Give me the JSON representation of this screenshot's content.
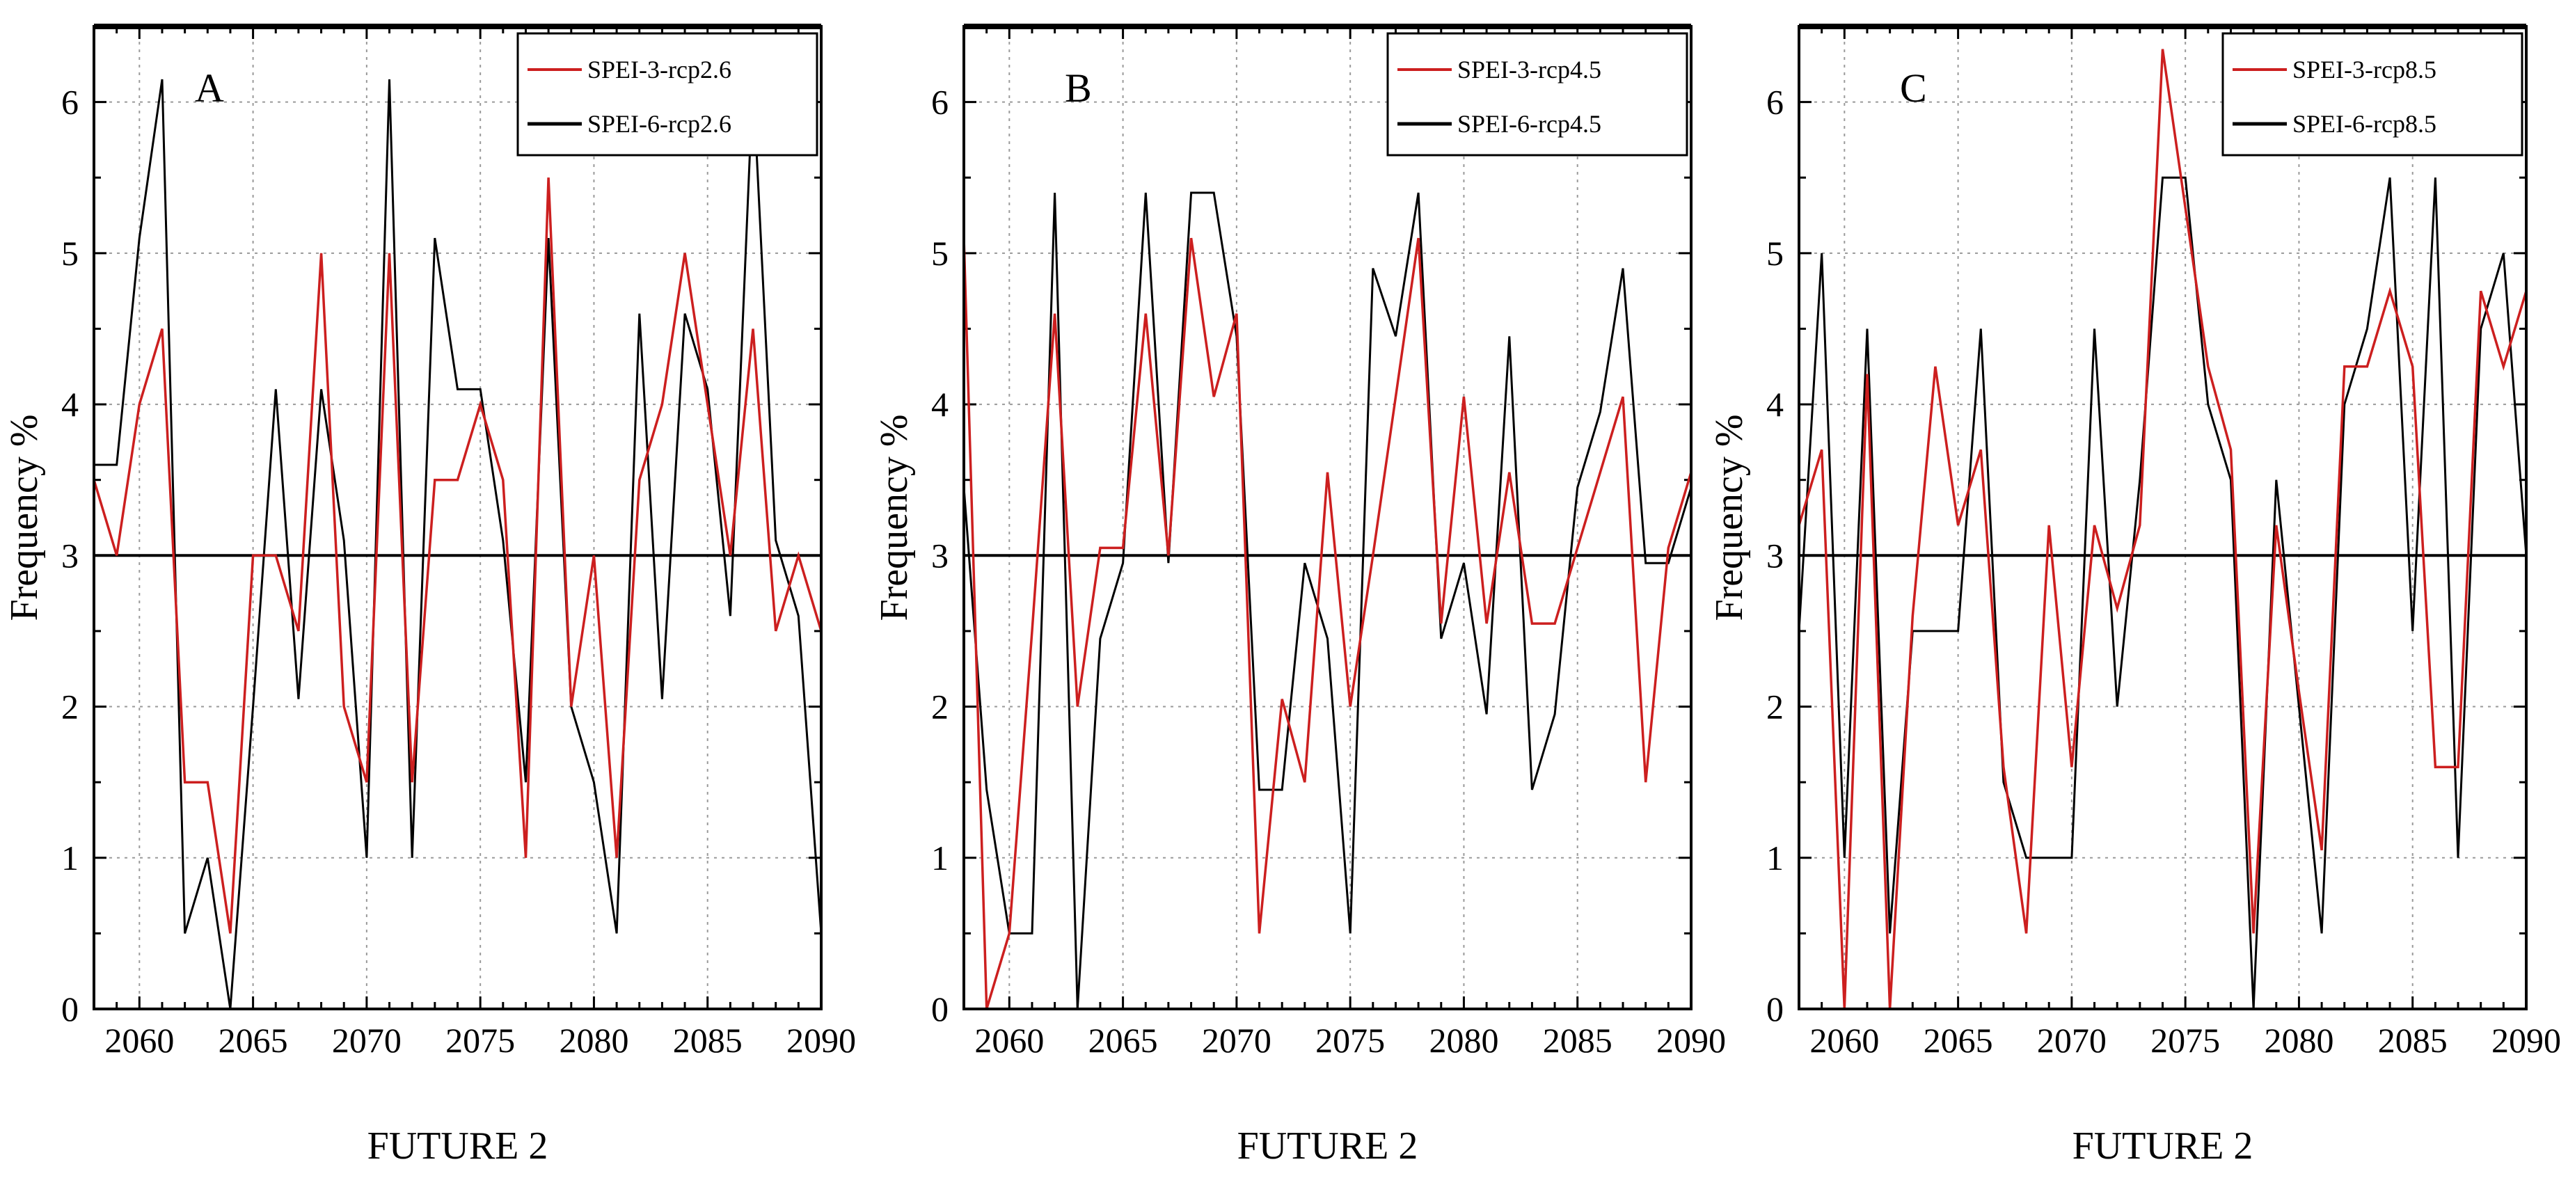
{
  "chart_data": [
    {
      "type": "line",
      "panel_label": "A",
      "xlabel": "FUTURE 2",
      "ylabel": "Frequency %",
      "xlim": [
        2058,
        2090
      ],
      "ylim": [
        0,
        6.5
      ],
      "xticks": [
        2060,
        2065,
        2070,
        2075,
        2080,
        2085,
        2090
      ],
      "yticks": [
        0,
        1,
        2,
        3,
        4,
        5,
        6
      ],
      "grid": true,
      "legend_position": "top-right",
      "reference_line": 3,
      "series": [
        {
          "name": "SPEI-3-rcp2.6",
          "color": "#cc1f1f",
          "x": [
            2058,
            2059,
            2060,
            2061,
            2062,
            2063,
            2064,
            2065,
            2066,
            2067,
            2068,
            2069,
            2070,
            2071,
            2072,
            2073,
            2074,
            2075,
            2076,
            2077,
            2078,
            2079,
            2080,
            2081,
            2082,
            2083,
            2084,
            2085,
            2086,
            2087,
            2088,
            2089,
            2090
          ],
          "values": [
            3.5,
            3.0,
            4.0,
            4.5,
            1.5,
            1.5,
            0.5,
            3.0,
            3.0,
            2.5,
            5.0,
            2.0,
            1.5,
            5.0,
            1.5,
            3.5,
            3.5,
            4.0,
            3.5,
            1.0,
            5.5,
            2.0,
            3.0,
            1.0,
            3.5,
            4.0,
            5.0,
            4.0,
            3.0,
            4.5,
            2.5,
            3.0,
            2.5
          ]
        },
        {
          "name": "SPEI-6-rcp2.6",
          "color": "#000000",
          "x": [
            2058,
            2059,
            2060,
            2061,
            2062,
            2063,
            2064,
            2065,
            2066,
            2067,
            2068,
            2069,
            2070,
            2071,
            2072,
            2073,
            2074,
            2075,
            2076,
            2077,
            2078,
            2079,
            2080,
            2081,
            2082,
            2083,
            2084,
            2085,
            2086,
            2087,
            2088,
            2089,
            2090
          ],
          "values": [
            3.6,
            3.6,
            5.1,
            6.15,
            0.5,
            1.0,
            0.0,
            2.0,
            4.1,
            2.05,
            4.1,
            3.1,
            1.0,
            6.15,
            1.0,
            5.1,
            4.1,
            4.1,
            3.1,
            1.5,
            5.1,
            2.0,
            1.5,
            0.5,
            4.6,
            2.05,
            4.6,
            4.1,
            2.6,
            6.15,
            3.1,
            2.6,
            0.5
          ]
        }
      ]
    },
    {
      "type": "line",
      "panel_label": "B",
      "xlabel": "FUTURE 2",
      "ylabel": "Frequency %",
      "xlim": [
        2058,
        2090
      ],
      "ylim": [
        0,
        6.5
      ],
      "xticks": [
        2060,
        2065,
        2070,
        2075,
        2080,
        2085,
        2090
      ],
      "yticks": [
        0,
        1,
        2,
        3,
        4,
        5,
        6
      ],
      "grid": true,
      "legend_position": "top-right",
      "reference_line": 3,
      "series": [
        {
          "name": "SPEI-3-rcp4.5",
          "color": "#cc1f1f",
          "x": [
            2058,
            2059,
            2060,
            2061,
            2062,
            2063,
            2064,
            2065,
            2066,
            2067,
            2068,
            2069,
            2070,
            2071,
            2072,
            2073,
            2074,
            2075,
            2076,
            2077,
            2078,
            2079,
            2080,
            2081,
            2082,
            2083,
            2084,
            2085,
            2086,
            2087,
            2088,
            2089,
            2090
          ],
          "values": [
            5.1,
            0.0,
            0.5,
            2.5,
            4.6,
            2.0,
            3.05,
            3.05,
            4.6,
            3.0,
            5.1,
            4.05,
            4.6,
            0.5,
            2.05,
            1.5,
            3.55,
            2.0,
            3.0,
            4.05,
            5.1,
            2.55,
            4.05,
            2.55,
            3.55,
            2.55,
            2.55,
            3.05,
            3.55,
            4.05,
            1.5,
            3.05,
            3.55
          ]
        },
        {
          "name": "SPEI-6-rcp4.5",
          "color": "#000000",
          "x": [
            2058,
            2059,
            2060,
            2061,
            2062,
            2063,
            2064,
            2065,
            2066,
            2067,
            2068,
            2069,
            2070,
            2071,
            2072,
            2073,
            2074,
            2075,
            2076,
            2077,
            2078,
            2079,
            2080,
            2081,
            2082,
            2083,
            2084,
            2085,
            2086,
            2087,
            2088,
            2089,
            2090
          ],
          "values": [
            3.45,
            1.45,
            0.5,
            0.5,
            5.4,
            0.0,
            2.45,
            2.95,
            5.4,
            2.95,
            5.4,
            5.4,
            4.45,
            1.45,
            1.45,
            2.95,
            2.45,
            0.5,
            4.9,
            4.45,
            5.4,
            2.45,
            2.95,
            1.95,
            4.45,
            1.45,
            1.95,
            3.45,
            3.95,
            4.9,
            2.95,
            2.95,
            3.45
          ]
        }
      ]
    },
    {
      "type": "line",
      "panel_label": "C",
      "xlabel": "FUTURE 2",
      "ylabel": "Frequency %",
      "xlim": [
        2058,
        2090
      ],
      "ylim": [
        0,
        6.5
      ],
      "xticks": [
        2060,
        2065,
        2070,
        2075,
        2080,
        2085,
        2090
      ],
      "yticks": [
        0,
        1,
        2,
        3,
        4,
        5,
        6
      ],
      "grid": true,
      "legend_position": "top-right",
      "reference_line": 3,
      "series": [
        {
          "name": "SPEI-3-rcp8.5",
          "color": "#cc1f1f",
          "x": [
            2058,
            2059,
            2060,
            2061,
            2062,
            2063,
            2064,
            2065,
            2066,
            2067,
            2068,
            2069,
            2070,
            2071,
            2072,
            2073,
            2074,
            2075,
            2076,
            2077,
            2078,
            2079,
            2080,
            2081,
            2082,
            2083,
            2084,
            2085,
            2086,
            2087,
            2088,
            2089,
            2090
          ],
          "values": [
            3.2,
            3.7,
            0.0,
            4.2,
            0.0,
            2.6,
            4.25,
            3.2,
            3.7,
            1.6,
            0.5,
            3.2,
            1.6,
            3.2,
            2.65,
            3.2,
            6.35,
            5.3,
            4.25,
            3.7,
            0.5,
            3.2,
            2.1,
            1.05,
            4.25,
            4.25,
            4.75,
            4.25,
            1.6,
            1.6,
            4.75,
            4.25,
            4.75
          ]
        },
        {
          "name": "SPEI-6-rcp8.5",
          "color": "#000000",
          "x": [
            2058,
            2059,
            2060,
            2061,
            2062,
            2063,
            2064,
            2065,
            2066,
            2067,
            2068,
            2069,
            2070,
            2071,
            2072,
            2073,
            2074,
            2075,
            2076,
            2077,
            2078,
            2079,
            2080,
            2081,
            2082,
            2083,
            2084,
            2085,
            2086,
            2087,
            2088,
            2089,
            2090
          ],
          "values": [
            2.5,
            5.0,
            1.0,
            4.5,
            0.5,
            2.5,
            2.5,
            2.5,
            4.5,
            1.5,
            1.0,
            1.0,
            1.0,
            4.5,
            2.0,
            3.5,
            5.5,
            5.5,
            4.0,
            3.5,
            0.0,
            3.5,
            2.0,
            0.5,
            4.0,
            4.5,
            5.5,
            2.5,
            5.5,
            1.0,
            4.5,
            5.0,
            3.0
          ]
        }
      ]
    }
  ]
}
